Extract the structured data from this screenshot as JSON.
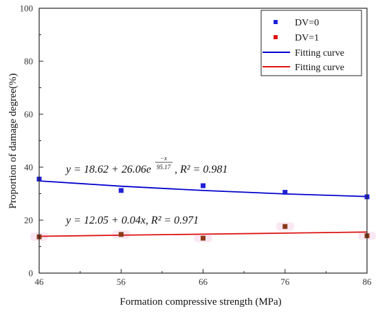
{
  "chart_data": {
    "type": "scatter",
    "xlabel": "Formation compressive strength (MPa)",
    "ylabel": "Proportion of damage degree(%)",
    "xlim": [
      46,
      86
    ],
    "ylim": [
      0,
      100
    ],
    "x_ticks": [
      "46",
      "56",
      "66",
      "76",
      "86"
    ],
    "y_ticks": [
      "0",
      "20",
      "40",
      "60",
      "80",
      "100"
    ],
    "x": [
      46,
      56,
      66,
      76,
      86
    ],
    "series": [
      {
        "name": "DV=0",
        "values": [
          35.5,
          31.2,
          33.0,
          30.5,
          28.8
        ],
        "color": "#1f1fd6",
        "marker": "square"
      },
      {
        "name": "DV=1",
        "values": [
          13.7,
          14.6,
          13.2,
          17.6,
          14.1
        ],
        "color": "#8b3a1a",
        "marker": "square"
      }
    ],
    "fits": [
      {
        "name": "Fitting curve",
        "color": "#0000cc",
        "values": [
          34.8,
          32.8,
          31.2,
          29.9,
          28.9
        ]
      },
      {
        "name": "Fitting curve",
        "color": "#dd1111",
        "values": [
          13.9,
          14.3,
          14.7,
          15.1,
          15.5
        ]
      }
    ],
    "equations": [
      {
        "prefix": "y = 18.62 + 26.06e",
        "exp_num": "−x",
        "exp_den": "95.17",
        "suffix": ", R² = 0.981"
      },
      {
        "text": "y = 12.05 + 0.04x, R² = 0.971"
      }
    ],
    "legend": {
      "placement": "top-right",
      "items": [
        "DV=0",
        "DV=1",
        "Fitting curve",
        "Fitting curve"
      ]
    },
    "grid": false
  }
}
